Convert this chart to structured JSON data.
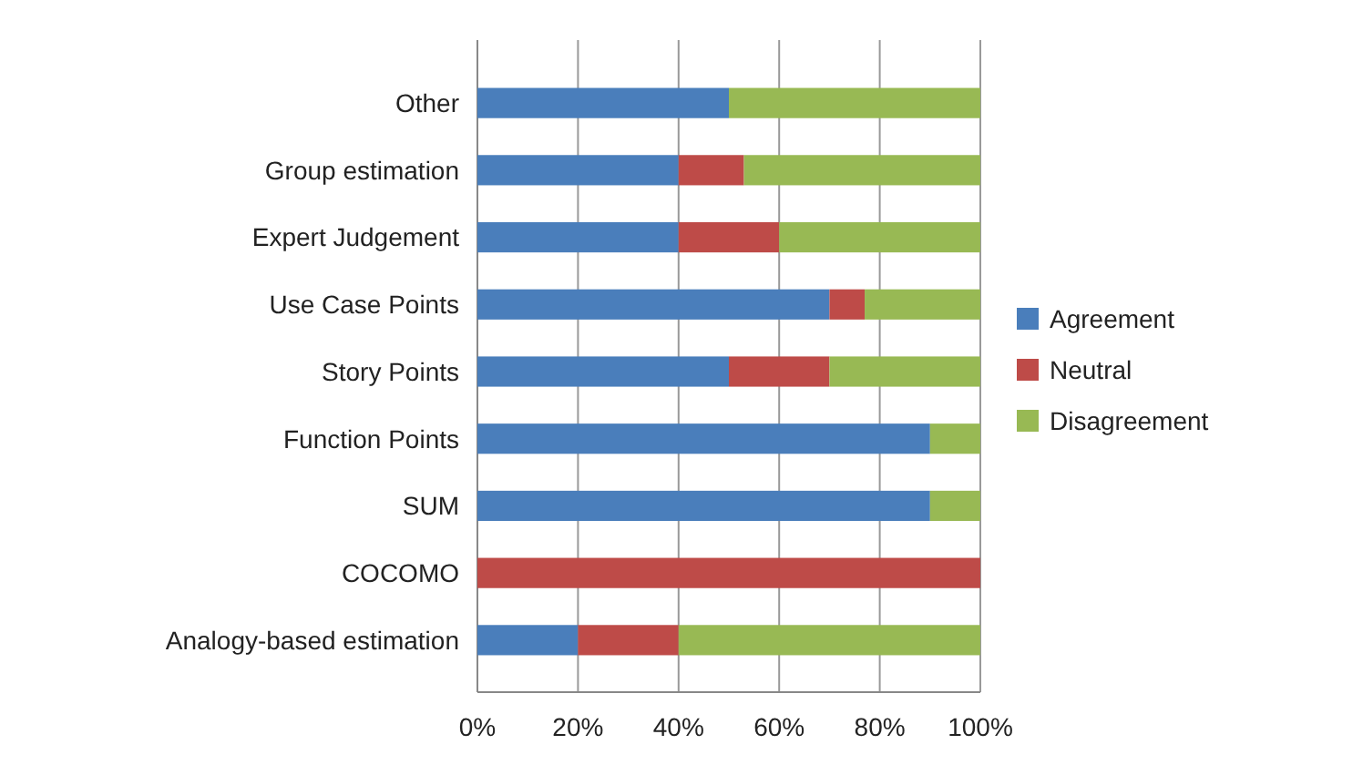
{
  "chart_data": {
    "type": "bar",
    "orientation": "horizontal",
    "stacked": true,
    "categories": [
      "Other",
      "Group estimation",
      "Expert Judgement",
      "Use Case Points",
      "Story Points",
      "Function Points",
      "SUM",
      "COCOMO",
      "Analogy-based estimation"
    ],
    "series": [
      {
        "name": "Agreement",
        "color": "#4a7ebb",
        "values": [
          50,
          40,
          40,
          70,
          50,
          90,
          90,
          0,
          20
        ]
      },
      {
        "name": "Neutral",
        "color": "#be4b48",
        "values": [
          0,
          13,
          20,
          7,
          20,
          0,
          0,
          100,
          20
        ]
      },
      {
        "name": "Disagreement",
        "color": "#98b954",
        "values": [
          50,
          47,
          40,
          23,
          30,
          10,
          10,
          0,
          60
        ]
      }
    ],
    "xlim": [
      0,
      100
    ],
    "xticks": [
      {
        "value": 0,
        "label": "0%"
      },
      {
        "value": 20,
        "label": "20%"
      },
      {
        "value": 40,
        "label": "40%"
      },
      {
        "value": 60,
        "label": "60%"
      },
      {
        "value": 80,
        "label": "80%"
      },
      {
        "value": 100,
        "label": "100%"
      }
    ],
    "grid": "x",
    "legend": "right"
  }
}
